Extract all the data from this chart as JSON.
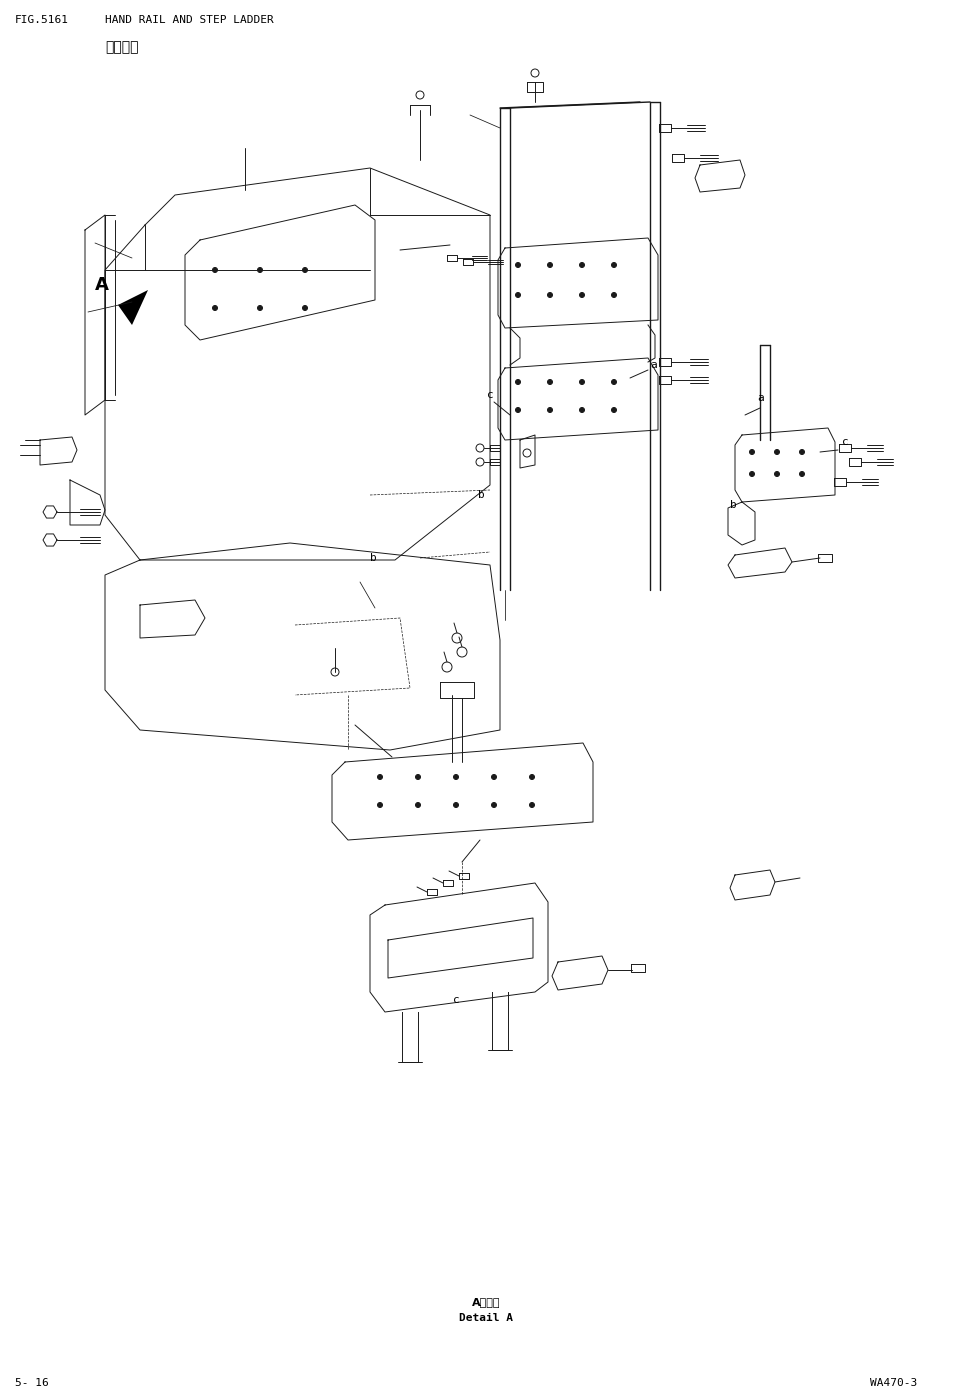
{
  "title_fig": "FIG.5161",
  "title_en": "HAND RAIL AND STEP LADDER",
  "title_cn": "手和梯子",
  "footer_left": "5- 16",
  "footer_right": "WA470-3",
  "detail_cn": "A部详细",
  "detail_en": "Detail A",
  "bg_color": "#ffffff",
  "line_color": "#1a1a1a",
  "lw": 0.7,
  "fig_w": 9.72,
  "fig_h": 13.99,
  "dpi": 100
}
